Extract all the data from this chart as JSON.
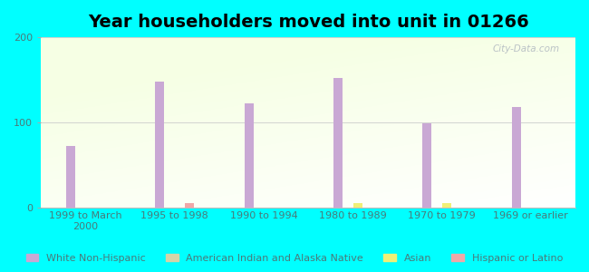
{
  "title": "Year householders moved into unit in 01266",
  "categories": [
    "1999 to March\n2000",
    "1995 to 1998",
    "1990 to 1994",
    "1980 to 1989",
    "1970 to 1979",
    "1969 or earlier"
  ],
  "white_non_hispanic": [
    72,
    148,
    122,
    152,
    99,
    118
  ],
  "american_indian": [
    0,
    0,
    0,
    0,
    0,
    0
  ],
  "asian": [
    0,
    0,
    0,
    5,
    5,
    0
  ],
  "hispanic": [
    0,
    5,
    0,
    0,
    0,
    0
  ],
  "bar_width": 0.1,
  "ylim": [
    0,
    200
  ],
  "yticks": [
    0,
    100,
    200
  ],
  "colors": {
    "white_non_hispanic": "#c9a8d4",
    "american_indian": "#d4d4a8",
    "asian": "#f0f077",
    "hispanic": "#f0a8a8"
  },
  "legend_labels": [
    "White Non-Hispanic",
    "American Indian and Alaska Native",
    "Asian",
    "Hispanic or Latino"
  ],
  "background_color": "#00ffff",
  "watermark": "City-Data.com",
  "title_fontsize": 14,
  "tick_fontsize": 8,
  "legend_fontsize": 8
}
